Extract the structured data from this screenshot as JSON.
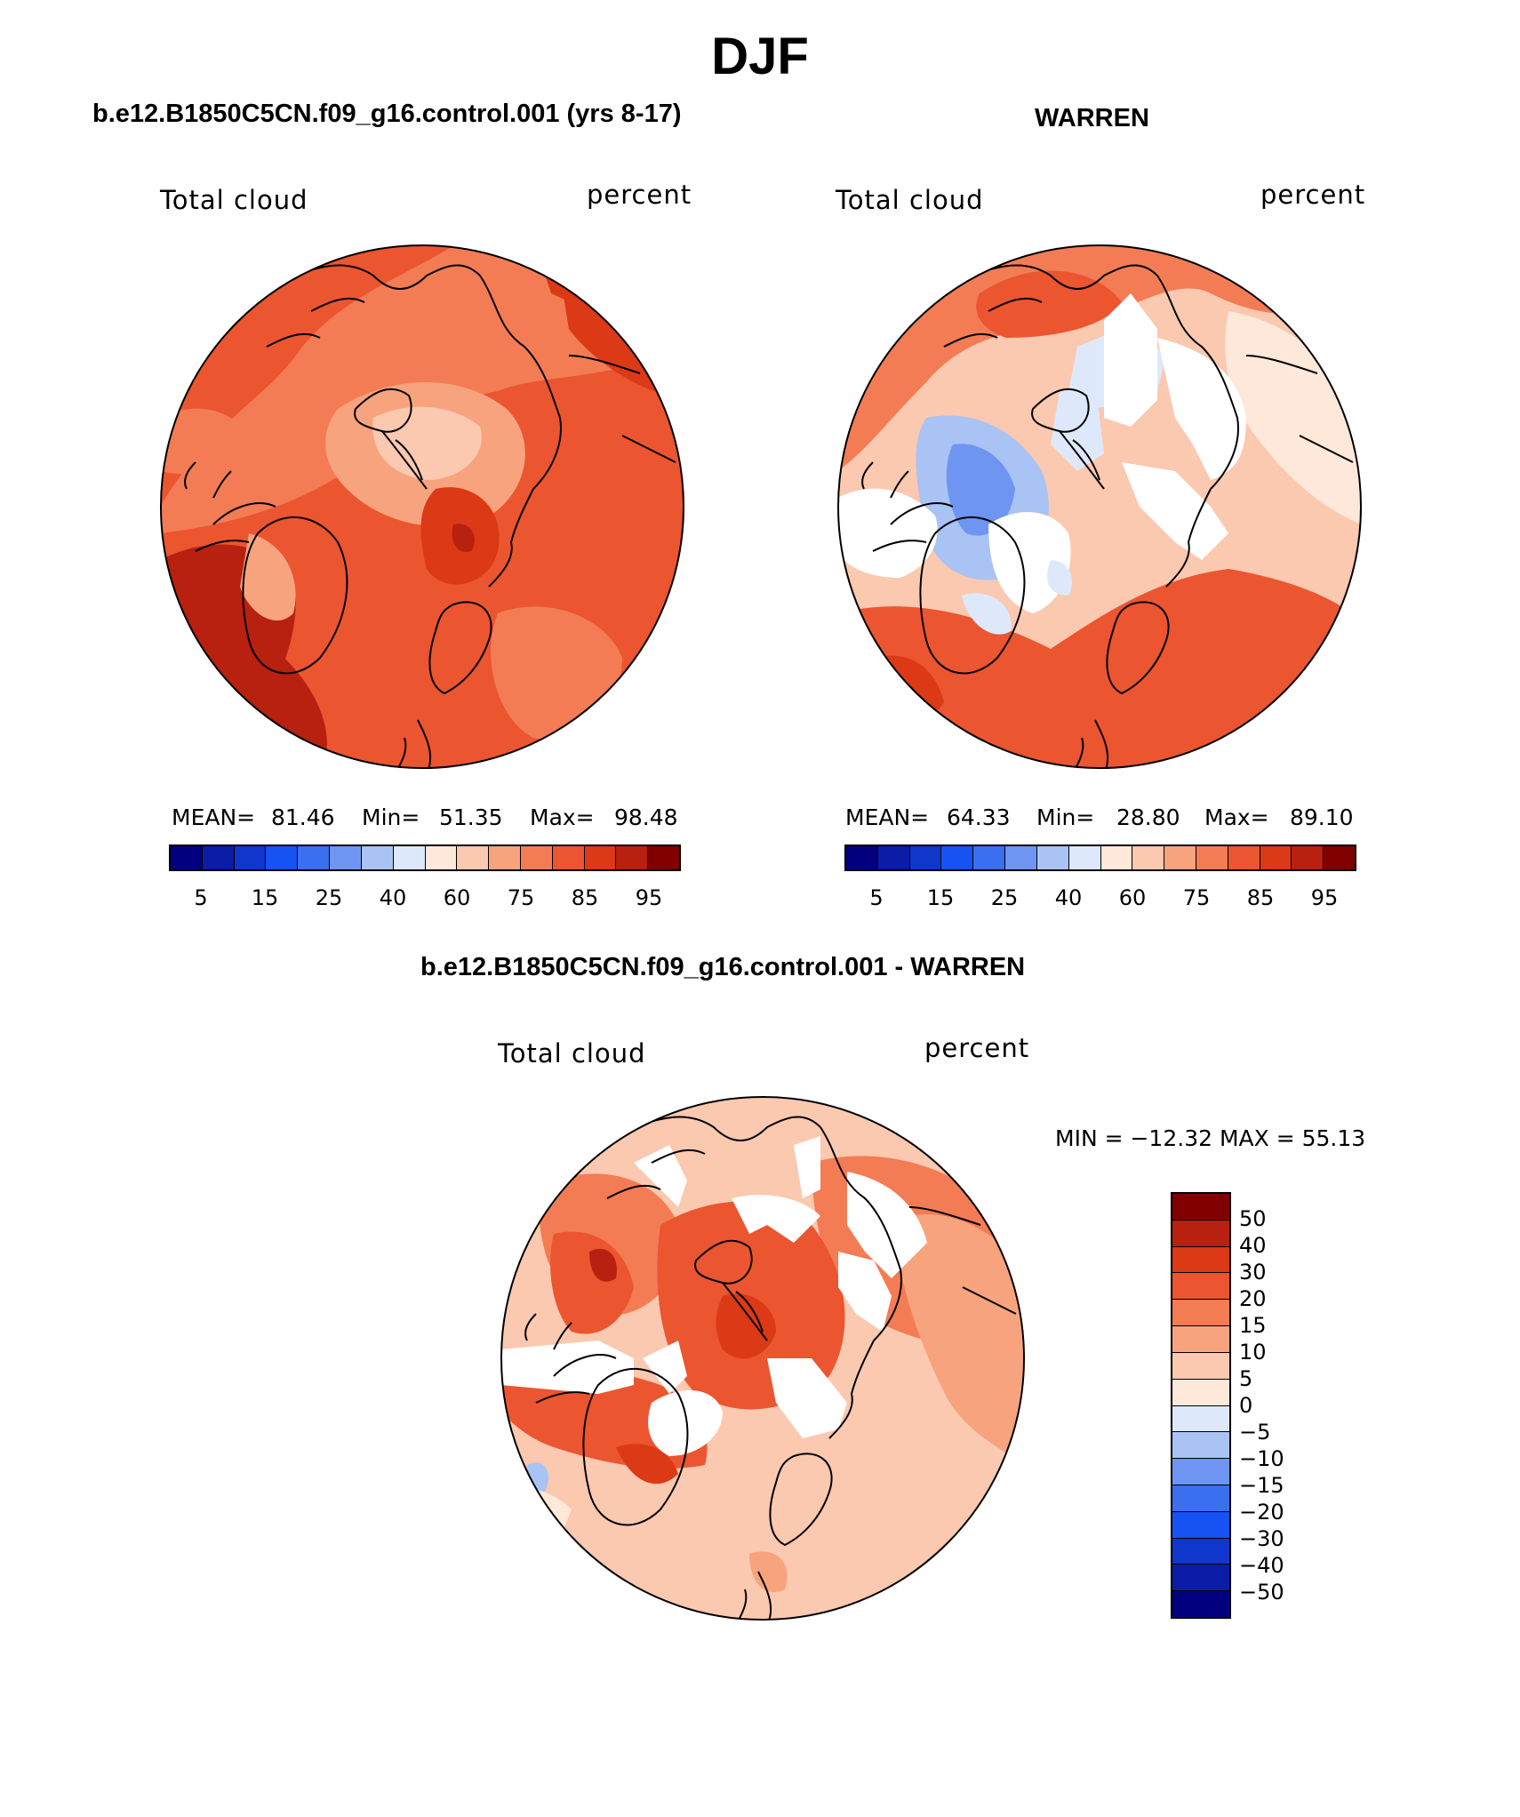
{
  "title": "DJF",
  "colors": {
    "abs_scale": [
      "#02007f",
      "#0b1ca6",
      "#0f37cc",
      "#1752f2",
      "#3a6ff0",
      "#6f95f2",
      "#a9c3f5",
      "#dde9fa",
      "#fde8da",
      "#fbc8b0",
      "#f7a47e",
      "#f37c55",
      "#eb5530",
      "#dc3916",
      "#b82010",
      "#800000"
    ],
    "diff_scale": [
      "#800000",
      "#b82010",
      "#dc3916",
      "#eb5530",
      "#f37c55",
      "#f7a47e",
      "#fbc8b0",
      "#fde8da",
      "#dde9fa",
      "#a9c3f5",
      "#6f95f2",
      "#3a6ff0",
      "#1752f2",
      "#0f37cc",
      "#0b1ca6",
      "#02007f"
    ],
    "missing": "#ffffff",
    "outline": "#000000"
  },
  "panels": [
    {
      "id": "model",
      "title": "b.e12.B1850C5CN.f09_g16.control.001 (yrs 8-17)",
      "left_label": "Total cloud",
      "right_label": "percent",
      "mean_label": "MEAN=",
      "mean": "81.46",
      "min_label": "Min=",
      "min": "51.35",
      "max_label": "Max=",
      "max": "98.48",
      "ticks": [
        "5",
        "15",
        "25",
        "40",
        "60",
        "75",
        "85",
        "95"
      ]
    },
    {
      "id": "obs",
      "title": "WARREN",
      "left_label": "Total cloud",
      "right_label": "percent",
      "mean_label": "MEAN=",
      "mean": "64.33",
      "min_label": "Min=",
      "min": "28.80",
      "max_label": "Max=",
      "max": "89.10",
      "ticks": [
        "5",
        "15",
        "25",
        "40",
        "60",
        "75",
        "85",
        "95"
      ]
    }
  ],
  "diff": {
    "title": "b.e12.B1850C5CN.f09_g16.control.001 - WARREN",
    "left_label": "Total cloud",
    "right_label": "percent",
    "minmax": "MIN = −12.32 MAX =  55.13",
    "ticks": [
      "50",
      "40",
      "30",
      "20",
      "15",
      "10",
      "5",
      "0",
      "−5",
      "−10",
      "−15",
      "−20",
      "−30",
      "−40",
      "−50"
    ]
  }
}
